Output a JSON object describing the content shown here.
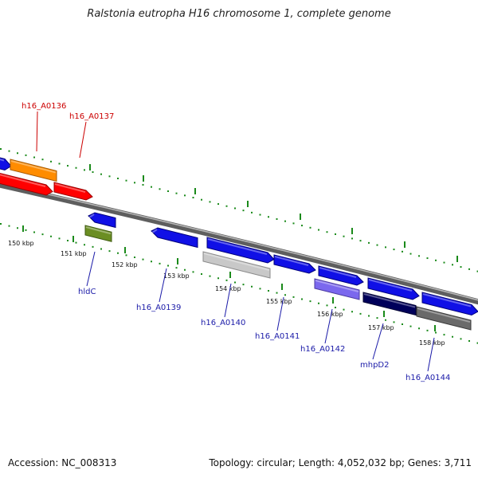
{
  "title": "Ralstonia eutropha H16 chromosome 1, complete genome",
  "footer": {
    "accession": "Accession: NC_008313",
    "summary": "Topology: circular; Length: 4,052,032 bp; Genes: 3,711"
  },
  "colors": {
    "backbone": "#7a7a7a",
    "tick": "#1a8a1a",
    "label_red": "#cc0000",
    "label_blue": "#1a1aa8"
  },
  "ticks": [
    {
      "label": "150 kbp"
    },
    {
      "label": "151 kbp"
    },
    {
      "label": "152 kbp"
    },
    {
      "label": "153 kbp"
    },
    {
      "label": "154 kbp"
    },
    {
      "label": "155 kbp"
    },
    {
      "label": "156 kbp"
    },
    {
      "label": "157 kbp"
    },
    {
      "label": "158 kbp"
    }
  ],
  "gene_labels": [
    {
      "text": "h16_A0136",
      "color": "red"
    },
    {
      "text": "h16_A0137",
      "color": "red"
    },
    {
      "text": "hldC",
      "color": "blue"
    },
    {
      "text": "h16_A0139",
      "color": "blue"
    },
    {
      "text": "h16_A0140",
      "color": "blue"
    },
    {
      "text": "h16_A0141",
      "color": "blue"
    },
    {
      "text": "h16_A0142",
      "color": "blue"
    },
    {
      "text": "mhpD2",
      "color": "blue"
    },
    {
      "text": "h16_A0144",
      "color": "blue"
    }
  ]
}
